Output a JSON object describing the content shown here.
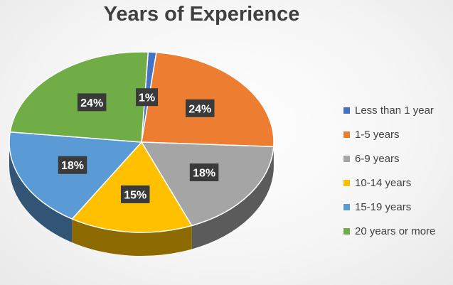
{
  "chart_data": {
    "type": "pie",
    "title": "Years of Experience",
    "categories": [
      "Less than 1 year",
      "1-5 years",
      "6-9 years",
      "10-14 years",
      "15-19 years",
      "20 years or more"
    ],
    "values": [
      1,
      24,
      18,
      15,
      18,
      24
    ],
    "data_labels": [
      "1%",
      "24%",
      "18%",
      "15%",
      "18%",
      "24%"
    ],
    "colors": [
      "#4472c4",
      "#ed7d31",
      "#a5a5a5",
      "#ffc000",
      "#5b9bd5",
      "#70ad47"
    ],
    "style": "3d",
    "legend_position": "right"
  }
}
